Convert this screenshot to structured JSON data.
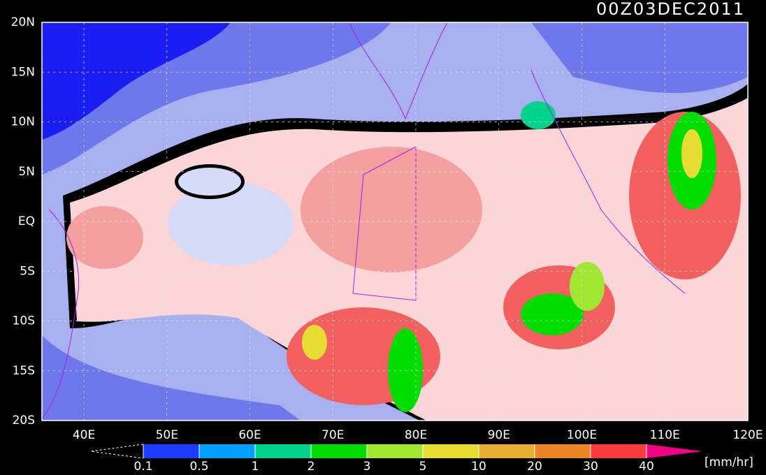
{
  "header": {
    "title": "00Z03DEC2011"
  },
  "map": {
    "lat_labels": [
      "20N",
      "15N",
      "10N",
      "5N",
      "EQ",
      "5S",
      "10S",
      "15S",
      "20S"
    ],
    "lon_labels": [
      "40E",
      "50E",
      "60E",
      "70E",
      "80E",
      "90E",
      "100E",
      "110E",
      "120E"
    ]
  },
  "colorbar": {
    "labels": [
      0.1,
      0.5,
      1,
      2,
      3,
      5,
      10,
      20,
      30,
      40
    ],
    "colors": [
      "#1e3cff",
      "#00a0ff",
      "#00d28c",
      "#00dc00",
      "#a0e632",
      "#e6dc32",
      "#e6af2d",
      "#f08228",
      "#fa3c3c"
    ],
    "over_color": "#f00082",
    "unit": "[mm/hr]"
  }
}
